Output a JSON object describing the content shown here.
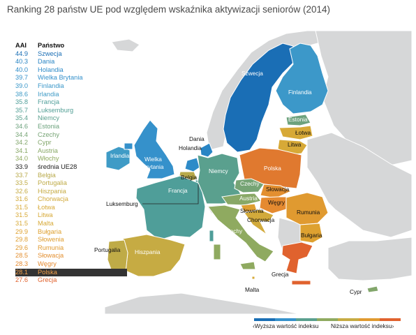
{
  "title": "Ranking 28 państw UE pod względem wskaźnika aktywizacji seniorów (2014)",
  "table": {
    "header_value": "AAI",
    "header_country": "Państwo",
    "rows": [
      {
        "value": "44.9",
        "country": "Szwecja",
        "color": "#1a6eb5"
      },
      {
        "value": "40.3",
        "country": "Dania",
        "color": "#2985c4"
      },
      {
        "value": "40.0",
        "country": "Holandia",
        "color": "#2e8bc8"
      },
      {
        "value": "39.7",
        "country": "Wielka Brytania",
        "color": "#3591cb"
      },
      {
        "value": "39.0",
        "country": "Finlandia",
        "color": "#3c98c9"
      },
      {
        "value": "38.6",
        "country": "Irlandia",
        "color": "#3f9bc6"
      },
      {
        "value": "35.8",
        "country": "Francja",
        "color": "#4f9e99"
      },
      {
        "value": "35.7",
        "country": "Luksemburg",
        "color": "#529f95"
      },
      {
        "value": "35.4",
        "country": "Niemcy",
        "color": "#5aa08e"
      },
      {
        "value": "34.6",
        "country": "Estonia",
        "color": "#6da27d"
      },
      {
        "value": "34.4",
        "country": "Czechy",
        "color": "#76a475"
      },
      {
        "value": "34.2",
        "country": "Cypr",
        "color": "#82a66b"
      },
      {
        "value": "34.1",
        "country": "Austria",
        "color": "#88a866"
      },
      {
        "value": "34.0",
        "country": "Włochy",
        "color": "#8faa60"
      },
      {
        "value": "33.9",
        "country": "średnia UE28",
        "color": "#222222"
      },
      {
        "value": "33.7",
        "country": "Belgia",
        "color": "#b8a94a"
      },
      {
        "value": "33.5",
        "country": "Portugalia",
        "color": "#bfab47"
      },
      {
        "value": "32.6",
        "country": "Hiszpania",
        "color": "#c6ab43"
      },
      {
        "value": "31.6",
        "country": "Chorwacja",
        "color": "#d2aa3b"
      },
      {
        "value": "31.5",
        "country": "Łotwa",
        "color": "#d7a937"
      },
      {
        "value": "31.5",
        "country": "Litwa",
        "color": "#d7a937"
      },
      {
        "value": "31.5",
        "country": "Malta",
        "color": "#d7a937"
      },
      {
        "value": "29.9",
        "country": "Bułgaria",
        "color": "#dea130"
      },
      {
        "value": "29.8",
        "country": "Słowenia",
        "color": "#df9e30"
      },
      {
        "value": "29.6",
        "country": "Rumunia",
        "color": "#e09a30"
      },
      {
        "value": "28.5",
        "country": "Słowacja",
        "color": "#e38f30"
      },
      {
        "value": "28.3",
        "country": "Węgry",
        "color": "#e58a30"
      },
      {
        "value": "28.1",
        "country": "Polska",
        "color": "#f2a14b",
        "highlight": true
      },
      {
        "value": "27.6",
        "country": "Grecja",
        "color": "#e0622e"
      }
    ]
  },
  "map_labels": {
    "szwecja": "Szwecja",
    "finlandia": "Finlandia",
    "estonia": "Estonia",
    "lotwa": "Łotwa",
    "litwa": "Litwa",
    "dania": "Dania",
    "holandia": "Holandia",
    "irlandia": "Irlandia",
    "wielka_brytania_1": "Wielka",
    "wielka_brytania_2": "Brytania",
    "belgia": "Belgia",
    "niemcy": "Niemcy",
    "polska": "Polska",
    "czechy": "Czechy",
    "slowacja": "Słowacja",
    "austria": "Austria",
    "wegry": "Węgry",
    "francja": "Francja",
    "luksemburg": "Luksemburg",
    "slowenia": "Słowenia",
    "chorwacja": "Chorwacja",
    "rumunia": "Rumunia",
    "bulgaria": "Bułgaria",
    "wlochy": "Włochy",
    "portugalia": "Portugalia",
    "hiszpania": "Hiszpania",
    "grecja": "Grecja",
    "malta": "Malta",
    "cypr": "Cypr"
  },
  "legend": {
    "higher": "Wyższa wartość indeksu",
    "lower": "Niższa wartość indeksu",
    "colors": [
      "#1a6eb5",
      "#3591cb",
      "#5aa08e",
      "#8faa60",
      "#c6ab43",
      "#e09a30",
      "#e0622e"
    ]
  },
  "colors": {
    "non_eu_land": "#d6d7d8",
    "borders": "#ffffff",
    "title_text": "#4a4a4a"
  }
}
